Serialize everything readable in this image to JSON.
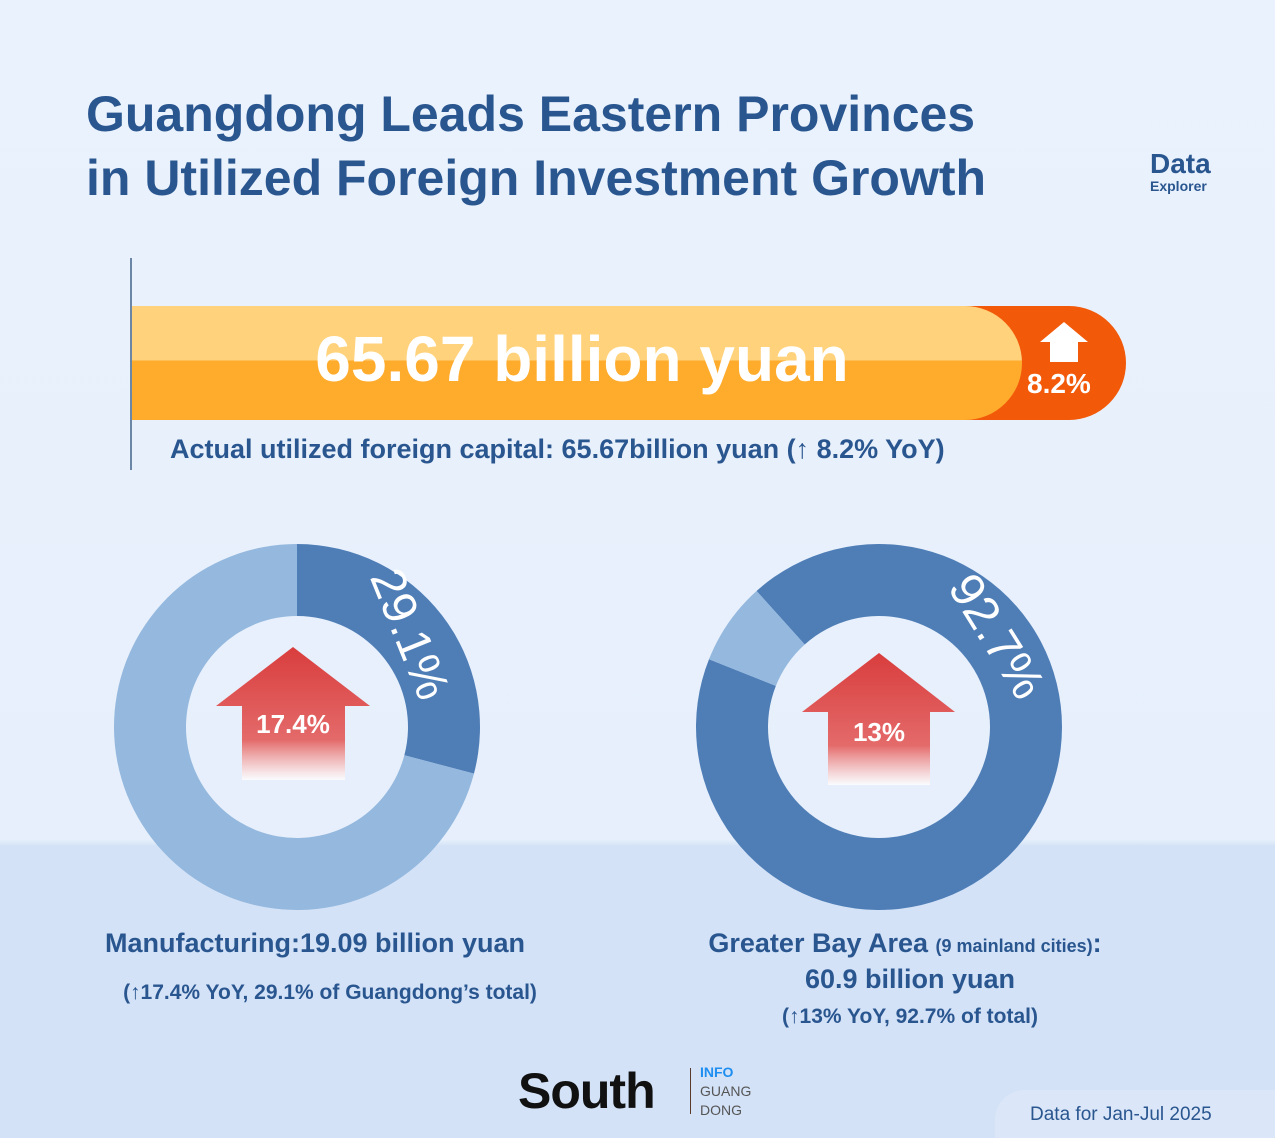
{
  "header": {
    "title_line1": "Guangdong Leads Eastern Provinces",
    "title_line2": "in Utilized Foreign Investment Growth",
    "logo_data": "Data",
    "logo_explorer": "Explorer"
  },
  "headline": {
    "value": "65.67 billion yuan",
    "growth": "8.2%",
    "caption": "Actual utilized foreign capital:  65.67billion yuan (↑ 8.2% YoY)"
  },
  "colors": {
    "dark": "#4f7eb7",
    "light": "#94b8de",
    "bar_orange": "#ffab2c",
    "bar_red": "#f25a0a",
    "arrow_red": "#d93d3d",
    "title": "#2a5690"
  },
  "chart_data": [
    {
      "type": "pie",
      "title": "Manufacturing",
      "values": [
        29.1,
        70.9
      ],
      "share_label": "29.1%",
      "growth_label": "17.4%"
    },
    {
      "type": "pie",
      "title": "Greater Bay Area",
      "values": [
        92.7,
        7.3
      ],
      "share_label": "92.7%",
      "growth_label": "13%"
    }
  ],
  "manufacturing": {
    "label": "Manufacturing:19.09 billion yuan",
    "sub": "(↑17.4% YoY, 29.1% of Guangdong’s total)"
  },
  "gba": {
    "label": "Greater Bay Area",
    "label_note": "(9 mainland cities)",
    "label_colon": ":",
    "value": "60.9 billion yuan",
    "sub": "(↑13% YoY, 92.7% of total)"
  },
  "footer": {
    "brand": "South",
    "info": "INFO",
    "guang": "GUANG",
    "dong": "DONG",
    "note": "Data for Jan-Jul 2025"
  }
}
